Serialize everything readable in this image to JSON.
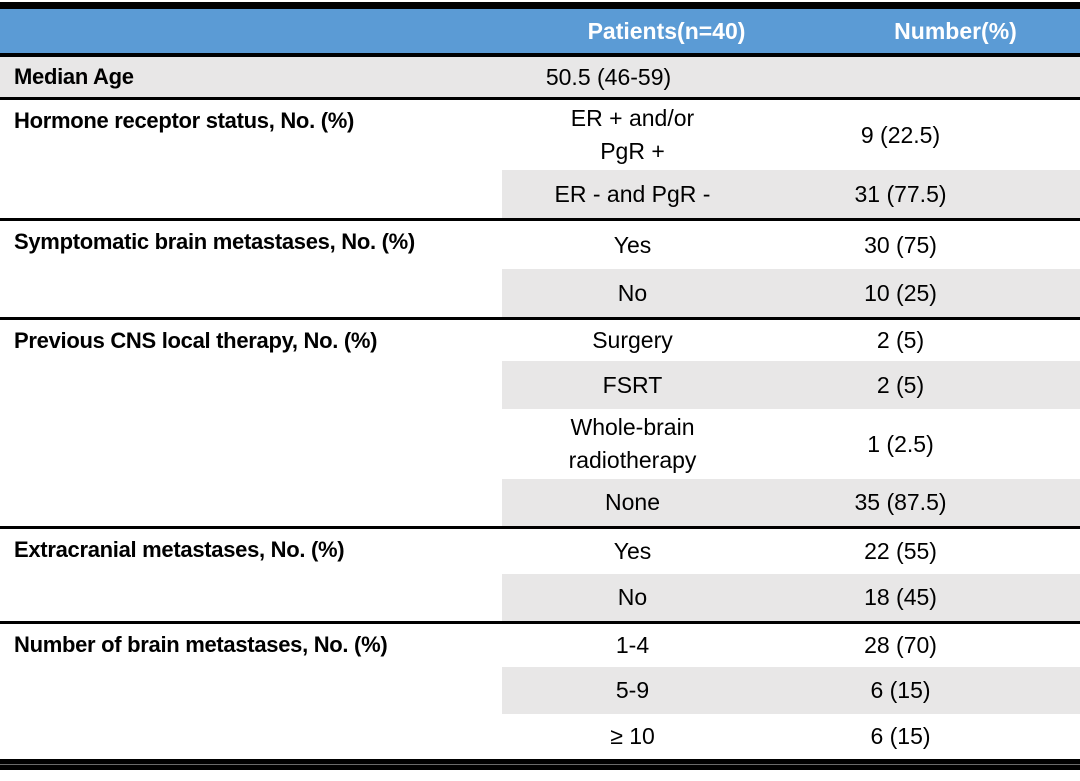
{
  "table": {
    "title_semantic": "Patient characteristics table",
    "colors": {
      "header_bg": "#5B9BD5",
      "header_text": "#FFFFFF",
      "shaded_row_bg": "#E8E7E7",
      "border": "#000000"
    },
    "header": {
      "patients": "Patients(n=40)",
      "number": "Number(%)"
    },
    "sections": [
      {
        "label": "Median Age",
        "rows": [
          {
            "value": "50.5 (46-59)",
            "number": ""
          }
        ]
      },
      {
        "label": "Hormone receptor status, No. (%)",
        "rows": [
          {
            "value": "ER + and/or\nPgR +",
            "number": "9 (22.5)"
          },
          {
            "value": "ER - and PgR -",
            "number": "31 (77.5)"
          }
        ]
      },
      {
        "label": "Symptomatic brain metastases, No. (%)",
        "rows": [
          {
            "value": "Yes",
            "number": "30 (75)"
          },
          {
            "value": "No",
            "number": "10 (25)"
          }
        ]
      },
      {
        "label": "Previous CNS local therapy, No. (%)",
        "rows": [
          {
            "value": "Surgery",
            "number": "2 (5)"
          },
          {
            "value": "FSRT",
            "number": "2 (5)"
          },
          {
            "value": "Whole-brain\nradiotherapy",
            "number": "1 (2.5)"
          },
          {
            "value": "None",
            "number": "35 (87.5)"
          }
        ]
      },
      {
        "label": "Extracranial metastases, No. (%)",
        "rows": [
          {
            "value": "Yes",
            "number": "22 (55)"
          },
          {
            "value": "No",
            "number": "18 (45)"
          }
        ]
      },
      {
        "label": "Number of brain metastases, No. (%)",
        "rows": [
          {
            "value": "1-4",
            "number": "28 (70)"
          },
          {
            "value": "5-9",
            "number": "6 (15)"
          },
          {
            "value": "≥ 10",
            "number": "6 (15)"
          }
        ]
      }
    ]
  }
}
